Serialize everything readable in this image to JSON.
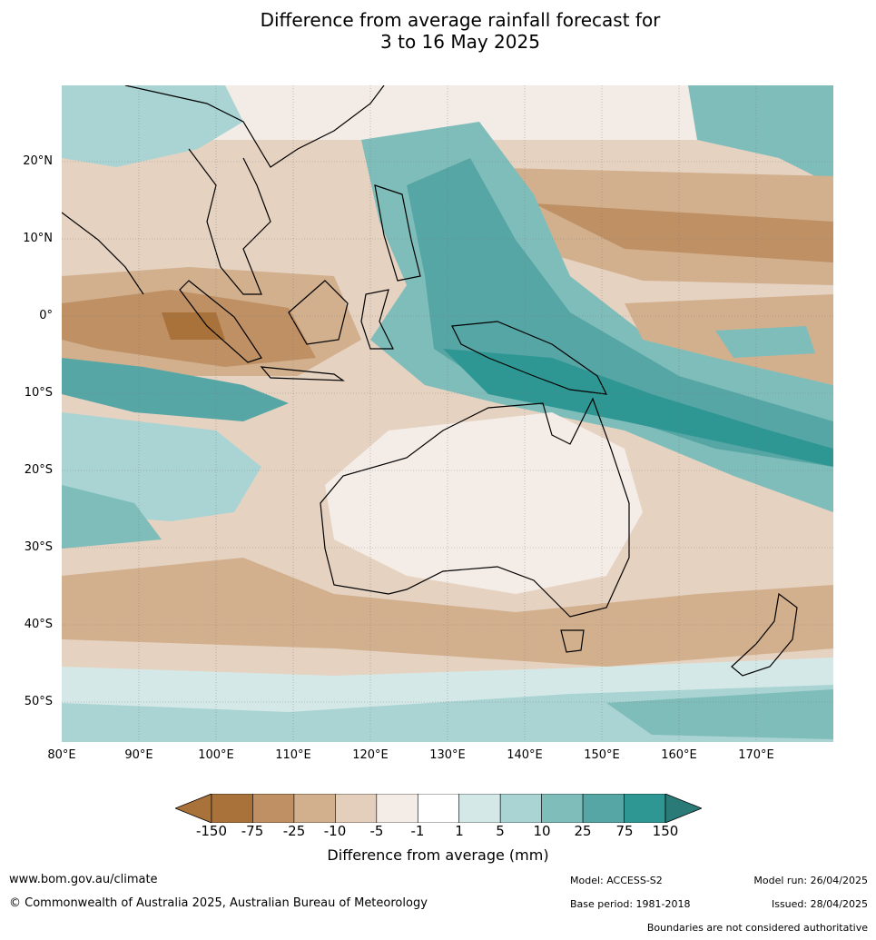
{
  "title": {
    "line1": "Difference from average rainfall forecast for",
    "line2": "3 to 16 May 2025"
  },
  "map": {
    "lat_labels": [
      "20°N",
      "10°N",
      "0°",
      "10°S",
      "20°S",
      "30°S",
      "40°S",
      "50°S"
    ],
    "lon_labels": [
      "80°E",
      "90°E",
      "100°E",
      "110°E",
      "120°E",
      "130°E",
      "140°E",
      "150°E",
      "160°E",
      "170°E"
    ]
  },
  "legend": {
    "ticks": [
      "-150",
      "-75",
      "-25",
      "-10",
      "-5",
      "-1",
      "1",
      "5",
      "10",
      "25",
      "75",
      "150"
    ],
    "colors": [
      "#a9723a",
      "#bf9064",
      "#d2b08e",
      "#e4cfbd",
      "#f4ece7",
      "#ffffff",
      "#d4e9e7",
      "#a9d4d3",
      "#7fbdbb",
      "#56a6a5",
      "#2f9793",
      "#2a7a77"
    ],
    "title": "Difference from average (mm)"
  },
  "footer": {
    "website": "www.bom.gov.au/climate",
    "copyright": "© Commonwealth of Australia 2025, Australian Bureau of Meteorology",
    "model": "Model: ACCESS-S2",
    "base_period": "Base period: 1981-2018",
    "model_run": "Model run: 26/04/2025",
    "issued": "Issued: 28/04/2025",
    "disclaimer": "Boundaries are not considered authoritative"
  }
}
